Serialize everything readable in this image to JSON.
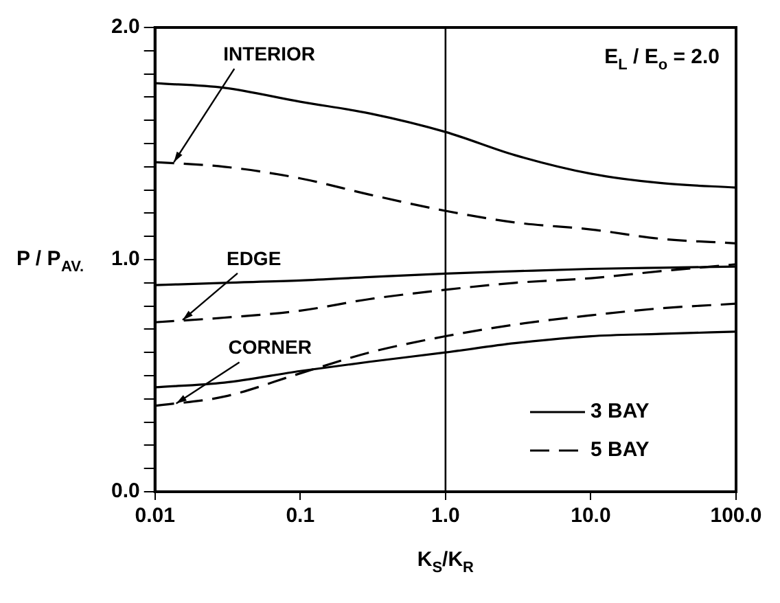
{
  "chart_data": {
    "type": "line",
    "xlabel": "K$_{S}$/K$_{R}$",
    "ylabel": "P / P$_{AV.}$",
    "log": "x",
    "xlim": [
      0.01,
      100
    ],
    "xticks": [
      {
        "value": 0.01,
        "label": "0.01"
      },
      {
        "value": 0.1,
        "label": "0.1"
      },
      {
        "value": 1,
        "label": "1.0"
      },
      {
        "value": 10,
        "label": "10.0"
      },
      {
        "value": 100,
        "label": "100.0"
      }
    ],
    "ylim": [
      0,
      2
    ],
    "yticks": [
      {
        "value": 0,
        "label": "0.0"
      },
      {
        "value": 0.1,
        "label": null
      },
      {
        "value": 0.2,
        "label": null
      },
      {
        "value": 0.3,
        "label": null
      },
      {
        "value": 0.4,
        "label": null
      },
      {
        "value": 0.5,
        "label": null
      },
      {
        "value": 0.6,
        "label": null
      },
      {
        "value": 0.7,
        "label": null
      },
      {
        "value": 0.8,
        "label": null
      },
      {
        "value": 0.9,
        "label": null
      },
      {
        "value": 1,
        "label": "1.0"
      },
      {
        "value": 1.1,
        "label": null
      },
      {
        "value": 1.2,
        "label": null
      },
      {
        "value": 1.3,
        "label": null
      },
      {
        "value": 1.4,
        "label": null
      },
      {
        "value": 1.5,
        "label": null
      },
      {
        "value": 1.6,
        "label": null
      },
      {
        "value": 1.7,
        "label": null
      },
      {
        "value": 1.8,
        "label": null
      },
      {
        "value": 1.9,
        "label": null
      },
      {
        "value": 2,
        "label": "2.0"
      }
    ],
    "x": [
      0.01,
      0.03,
      0.1,
      0.3,
      1,
      3,
      10,
      30,
      100
    ],
    "series": [
      {
        "name": "3 BAY",
        "color": "#000000",
        "line_style": "solid",
        "values": [
          1.76,
          1.74,
          1.68,
          1.63,
          1.55,
          1.45,
          1.37,
          1.33,
          1.31
        ]
      },
      {
        "name": "5 BAY",
        "color": "#000000",
        "line_style": "dashed",
        "values": [
          1.42,
          1.4,
          1.35,
          1.28,
          1.21,
          1.16,
          1.13,
          1.09,
          1.07
        ]
      },
      {
        "color": "#000000",
        "line_style": "solid",
        "values": [
          0.89,
          0.9,
          0.91,
          0.925,
          0.94,
          0.95,
          0.96,
          0.965,
          0.97
        ]
      },
      {
        "color": "#000000",
        "line_style": "dashed",
        "values": [
          0.73,
          0.75,
          0.78,
          0.83,
          0.87,
          0.9,
          0.92,
          0.95,
          0.98
        ]
      },
      {
        "color": "#000000",
        "line_style": "solid",
        "values": [
          0.45,
          0.47,
          0.52,
          0.56,
          0.6,
          0.64,
          0.67,
          0.68,
          0.69
        ]
      },
      {
        "color": "#000000",
        "line_style": "dashed",
        "values": [
          0.37,
          0.41,
          0.51,
          0.6,
          0.67,
          0.72,
          0.76,
          0.79,
          0.81
        ]
      }
    ],
    "ref_lines": [
      {
        "axis": "x",
        "value": 1,
        "color": "#000000",
        "line_style": "solid"
      }
    ],
    "annotations": [
      {
        "text": "INTERIOR",
        "x": 0.0135,
        "y": 1.42
      },
      {
        "text": "EDGE",
        "x": 0.0155,
        "y": 0.74
      },
      {
        "text": "CORNER",
        "x": 0.014,
        "y": 0.38
      },
      "E$_{L}$ / E$_{o}$ = 2.0"
    ],
    "legend": "bottom right",
    "grid": false
  }
}
